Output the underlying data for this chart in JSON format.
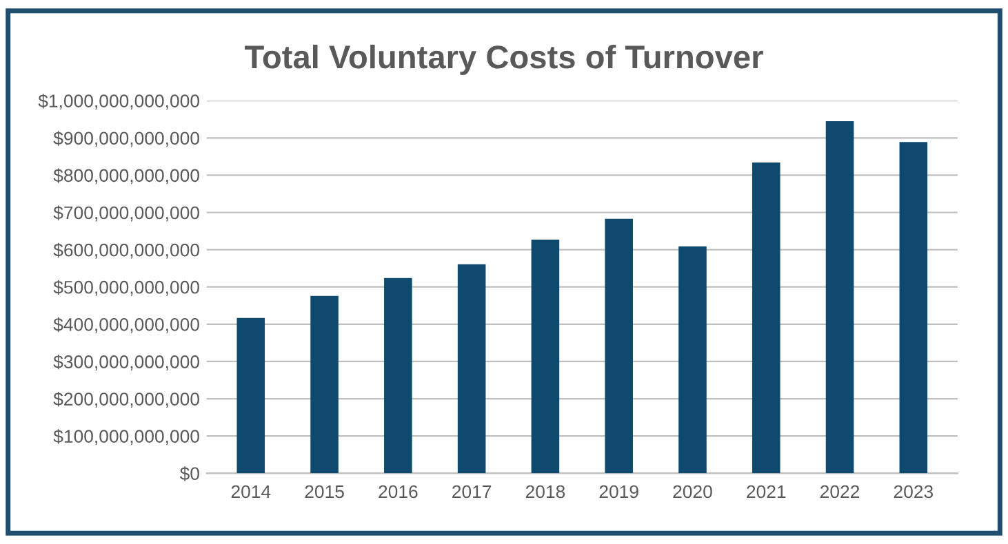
{
  "chart_data": {
    "type": "bar",
    "title": "Total Voluntary Costs of Turnover",
    "categories": [
      "2014",
      "2015",
      "2016",
      "2017",
      "2018",
      "2019",
      "2020",
      "2021",
      "2022",
      "2023"
    ],
    "values": [
      417000000000,
      476000000000,
      524000000000,
      561000000000,
      627000000000,
      683000000000,
      609000000000,
      834000000000,
      945000000000,
      889000000000
    ],
    "color": "#0e4a6e",
    "ylim": [
      0,
      1000000000000
    ],
    "yticks": [
      {
        "value": 0,
        "label": "$0"
      },
      {
        "value": 100000000000,
        "label": "$100,000,000,000"
      },
      {
        "value": 200000000000,
        "label": "$200,000,000,000"
      },
      {
        "value": 300000000000,
        "label": "$300,000,000,000"
      },
      {
        "value": 400000000000,
        "label": "$400,000,000,000"
      },
      {
        "value": 500000000000,
        "label": "$500,000,000,000"
      },
      {
        "value": 600000000000,
        "label": "$600,000,000,000"
      },
      {
        "value": 700000000000,
        "label": "$700,000,000,000"
      },
      {
        "value": 800000000000,
        "label": "$800,000,000,000"
      },
      {
        "value": 900000000000,
        "label": "$900,000,000,000"
      },
      {
        "value": 1000000000000,
        "label": "$1,000,000,000,000"
      }
    ],
    "grid": "y",
    "legend": false
  }
}
